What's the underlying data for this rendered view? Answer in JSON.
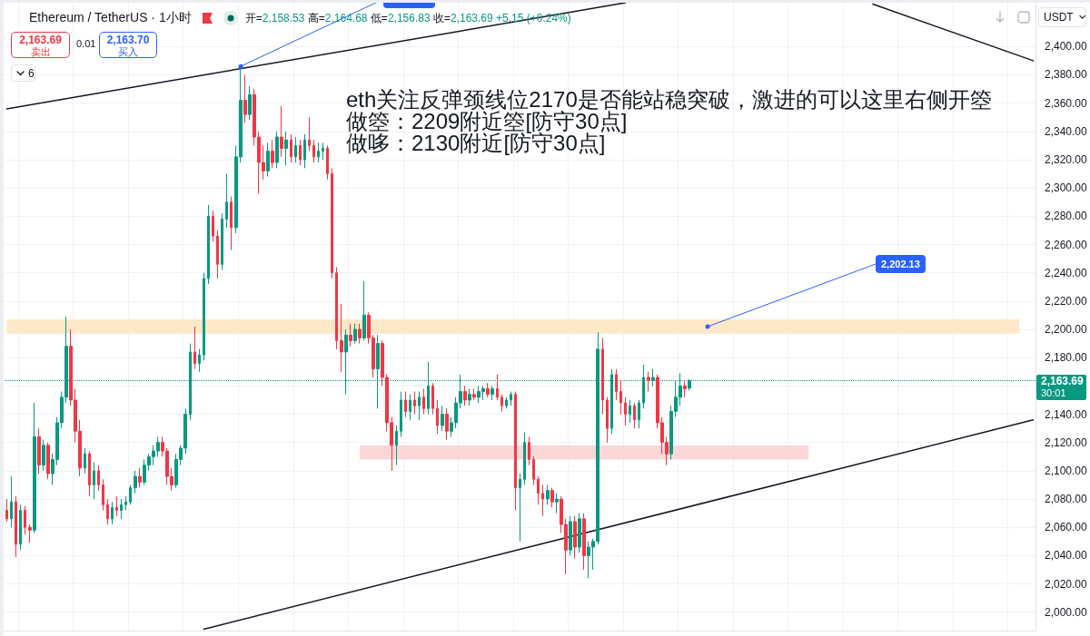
{
  "chart_data": {
    "type": "candlestick",
    "title": "Ethereum / TetherUS · 1小时",
    "subtitle": "开=2,158.53 高=2,164.68 低=2,156.83 收=2,163.69 +5.15 (+0.24%)",
    "annotations": [
      "eth关注反弹颈线位2170是否能站稳突破，激进的可以这里右侧开箜",
      "做箜：2209附近箜[防守30点]",
      "做哆：2130附近[防守30点]",
      "2,202.13",
      "30:01",
      "2,163.69",
      "卖出",
      "0.01",
      "2,163.70",
      "买入",
      "6",
      "USDT"
    ],
    "categories": [
      null,
      null,
      null,
      null,
      null,
      null,
      null,
      null,
      null,
      null,
      null,
      null,
      null,
      null,
      null,
      null,
      null,
      null,
      null,
      null,
      null,
      null,
      null,
      null,
      null,
      null,
      null,
      null,
      null,
      null,
      null,
      null,
      null,
      null,
      null,
      null,
      null,
      null,
      null,
      null,
      null,
      null,
      null,
      null,
      null,
      null,
      null,
      null,
      null,
      null,
      null,
      null,
      null,
      null,
      null,
      null,
      null,
      null,
      null,
      null,
      null,
      null,
      null,
      null,
      null,
      null,
      null,
      null,
      null,
      null,
      null,
      null,
      null,
      null,
      null,
      null,
      null,
      null,
      null,
      null,
      null,
      null,
      null,
      null,
      null,
      null,
      null,
      null,
      null,
      null,
      null,
      null,
      null,
      null,
      null,
      null,
      null,
      null,
      null,
      null,
      null,
      null,
      null,
      null,
      null,
      null,
      null,
      null,
      null,
      null,
      null,
      null,
      null,
      null,
      null,
      null,
      null,
      null,
      null,
      null,
      null,
      null,
      null,
      null,
      null,
      null,
      null,
      null,
      null,
      null,
      null,
      null,
      null,
      null,
      null,
      null,
      null,
      null,
      null,
      null,
      null,
      null,
      null,
      null,
      null,
      null,
      null,
      null,
      null,
      null,
      null,
      null,
      null,
      null,
      null,
      null,
      null,
      null,
      null,
      null,
      null,
      null,
      null,
      null,
      null,
      null,
      null,
      null,
      null,
      null,
      null,
      null,
      null,
      null,
      null,
      null,
      null,
      null,
      null,
      null,
      null,
      null,
      null,
      null,
      null,
      null,
      null,
      null,
      null,
      null,
      null,
      null,
      null,
      null,
      null,
      null,
      null,
      null,
      null,
      null,
      null,
      null,
      null,
      null,
      null,
      null,
      null,
      null,
      null,
      null,
      null,
      null,
      null,
      null,
      null,
      null,
      null,
      null,
      null,
      null,
      null,
      null,
      null,
      null,
      null
    ],
    "ohlc": [
      [
        2072,
        2080,
        2064,
        2066
      ],
      [
        2066,
        2096,
        2060,
        2078
      ],
      [
        2078,
        2082,
        2039,
        2048
      ],
      [
        2048,
        2076,
        2044,
        2072
      ],
      [
        2072,
        2075,
        2055,
        2060
      ],
      [
        2060,
        2062,
        2049,
        2058
      ],
      [
        2058,
        2148,
        2056,
        2124
      ],
      [
        2124,
        2130,
        2098,
        2104
      ],
      [
        2104,
        2122,
        2100,
        2118
      ],
      [
        2118,
        2120,
        2094,
        2098
      ],
      [
        2098,
        2112,
        2090,
        2108
      ],
      [
        2108,
        2138,
        2104,
        2134
      ],
      [
        2134,
        2156,
        2130,
        2152
      ],
      [
        2152,
        2209,
        2148,
        2188
      ],
      [
        2188,
        2200,
        2146,
        2150
      ],
      [
        2150,
        2158,
        2120,
        2128
      ],
      [
        2128,
        2136,
        2096,
        2102
      ],
      [
        2102,
        2116,
        2098,
        2112
      ],
      [
        2112,
        2114,
        2082,
        2090
      ],
      [
        2090,
        2106,
        2080,
        2100
      ],
      [
        2100,
        2104,
        2086,
        2090
      ],
      [
        2090,
        2094,
        2072,
        2076
      ],
      [
        2076,
        2080,
        2062,
        2066
      ],
      [
        2066,
        2078,
        2062,
        2074
      ],
      [
        2074,
        2082,
        2068,
        2072
      ],
      [
        2072,
        2080,
        2066,
        2076
      ],
      [
        2076,
        2082,
        2072,
        2078
      ],
      [
        2078,
        2090,
        2076,
        2088
      ],
      [
        2088,
        2100,
        2084,
        2096
      ],
      [
        2096,
        2102,
        2088,
        2092
      ],
      [
        2092,
        2108,
        2090,
        2104
      ],
      [
        2104,
        2112,
        2100,
        2110
      ],
      [
        2110,
        2118,
        2104,
        2114
      ],
      [
        2114,
        2124,
        2110,
        2120
      ],
      [
        2120,
        2124,
        2110,
        2114
      ],
      [
        2114,
        2116,
        2090,
        2096
      ],
      [
        2096,
        2102,
        2086,
        2090
      ],
      [
        2090,
        2112,
        2088,
        2108
      ],
      [
        2108,
        2118,
        2104,
        2116
      ],
      [
        2116,
        2144,
        2112,
        2140
      ],
      [
        2140,
        2190,
        2136,
        2184
      ],
      [
        2184,
        2202,
        2172,
        2176
      ],
      [
        2176,
        2186,
        2170,
        2182
      ],
      [
        2182,
        2240,
        2178,
        2236
      ],
      [
        2236,
        2288,
        2232,
        2280
      ],
      [
        2280,
        2284,
        2262,
        2266
      ],
      [
        2266,
        2270,
        2236,
        2246
      ],
      [
        2246,
        2282,
        2242,
        2278
      ],
      [
        2278,
        2310,
        2272,
        2290
      ],
      [
        2290,
        2294,
        2256,
        2272
      ],
      [
        2272,
        2330,
        2268,
        2322
      ],
      [
        2322,
        2386,
        2318,
        2362
      ],
      [
        2362,
        2380,
        2346,
        2352
      ],
      [
        2352,
        2372,
        2348,
        2366
      ],
      [
        2366,
        2370,
        2330,
        2336
      ],
      [
        2336,
        2340,
        2296,
        2318
      ],
      [
        2318,
        2330,
        2306,
        2312
      ],
      [
        2312,
        2332,
        2308,
        2326
      ],
      [
        2326,
        2334,
        2314,
        2318
      ],
      [
        2318,
        2340,
        2314,
        2336
      ],
      [
        2336,
        2358,
        2322,
        2328
      ],
      [
        2328,
        2340,
        2316,
        2334
      ],
      [
        2334,
        2338,
        2318,
        2322
      ],
      [
        2322,
        2336,
        2318,
        2330
      ],
      [
        2330,
        2334,
        2316,
        2320
      ],
      [
        2320,
        2338,
        2314,
        2334
      ],
      [
        2334,
        2350,
        2326,
        2330
      ],
      [
        2330,
        2334,
        2318,
        2322
      ],
      [
        2322,
        2332,
        2318,
        2326
      ],
      [
        2326,
        2332,
        2320,
        2328
      ],
      [
        2328,
        2330,
        2306,
        2310
      ],
      [
        2310,
        2314,
        2236,
        2240
      ],
      [
        2240,
        2244,
        2186,
        2192
      ],
      [
        2192,
        2218,
        2170,
        2184
      ],
      [
        2184,
        2200,
        2154,
        2196
      ],
      [
        2196,
        2204,
        2188,
        2192
      ],
      [
        2192,
        2204,
        2190,
        2200
      ],
      [
        2200,
        2204,
        2190,
        2194
      ],
      [
        2194,
        2234,
        2192,
        2210
      ],
      [
        2210,
        2212,
        2190,
        2194
      ],
      [
        2194,
        2196,
        2166,
        2172
      ],
      [
        2172,
        2196,
        2144,
        2190
      ],
      [
        2190,
        2192,
        2160,
        2166
      ],
      [
        2166,
        2168,
        2128,
        2134
      ],
      [
        2134,
        2138,
        2100,
        2118
      ],
      [
        2118,
        2132,
        2104,
        2128
      ],
      [
        2128,
        2156,
        2124,
        2150
      ],
      [
        2150,
        2156,
        2138,
        2142
      ],
      [
        2142,
        2154,
        2136,
        2150
      ],
      [
        2150,
        2156,
        2140,
        2146
      ],
      [
        2146,
        2156,
        2136,
        2152
      ],
      [
        2152,
        2158,
        2140,
        2144
      ],
      [
        2144,
        2177,
        2140,
        2160
      ],
      [
        2160,
        2162,
        2140,
        2144
      ],
      [
        2144,
        2150,
        2126,
        2132
      ],
      [
        2132,
        2146,
        2128,
        2140
      ],
      [
        2140,
        2144,
        2122,
        2128
      ],
      [
        2128,
        2138,
        2124,
        2134
      ],
      [
        2134,
        2152,
        2130,
        2148
      ],
      [
        2148,
        2168,
        2144,
        2156
      ],
      [
        2156,
        2160,
        2146,
        2150
      ],
      [
        2150,
        2158,
        2146,
        2154
      ],
      [
        2154,
        2158,
        2150,
        2152
      ],
      [
        2152,
        2160,
        2148,
        2156
      ],
      [
        2156,
        2160,
        2150,
        2158
      ],
      [
        2158,
        2162,
        2152,
        2154
      ],
      [
        2154,
        2160,
        2150,
        2158
      ],
      [
        2158,
        2168,
        2150,
        2152
      ],
      [
        2152,
        2154,
        2142,
        2146
      ],
      [
        2146,
        2152,
        2144,
        2150
      ],
      [
        2150,
        2156,
        2146,
        2154
      ],
      [
        2154,
        2156,
        2072,
        2088
      ],
      [
        2088,
        2098,
        2050,
        2094
      ],
      [
        2094,
        2127,
        2090,
        2120
      ],
      [
        2120,
        2124,
        2104,
        2108
      ],
      [
        2108,
        2110,
        2090,
        2094
      ],
      [
        2094,
        2096,
        2076,
        2084
      ],
      [
        2084,
        2090,
        2068,
        2080
      ],
      [
        2080,
        2090,
        2076,
        2086
      ],
      [
        2086,
        2088,
        2074,
        2078
      ],
      [
        2078,
        2084,
        2070,
        2080
      ],
      [
        2080,
        2082,
        2056,
        2062
      ],
      [
        2062,
        2066,
        2027,
        2044
      ],
      [
        2044,
        2068,
        2040,
        2064
      ],
      [
        2064,
        2068,
        2038,
        2046
      ],
      [
        2046,
        2070,
        2042,
        2066
      ],
      [
        2066,
        2070,
        2030,
        2040
      ],
      [
        2040,
        2050,
        2024,
        2046
      ],
      [
        2046,
        2052,
        2030,
        2050
      ],
      [
        2050,
        2198,
        2048,
        2186
      ],
      [
        2186,
        2194,
        2140,
        2150
      ],
      [
        2150,
        2152,
        2120,
        2130
      ],
      [
        2130,
        2172,
        2126,
        2168
      ],
      [
        2168,
        2172,
        2150,
        2156
      ],
      [
        2156,
        2164,
        2140,
        2148
      ],
      [
        2148,
        2152,
        2132,
        2140
      ],
      [
        2140,
        2150,
        2134,
        2146
      ],
      [
        2146,
        2148,
        2130,
        2136
      ],
      [
        2136,
        2150,
        2130,
        2148
      ],
      [
        2148,
        2175,
        2144,
        2166
      ],
      [
        2166,
        2170,
        2156,
        2164
      ],
      [
        2164,
        2172,
        2160,
        2166
      ],
      [
        2166,
        2168,
        2130,
        2134
      ],
      [
        2134,
        2138,
        2112,
        2120
      ],
      [
        2120,
        2124,
        2104,
        2112
      ],
      [
        2112,
        2146,
        2108,
        2142
      ],
      [
        2142,
        2164,
        2138,
        2152
      ],
      [
        2152,
        2169,
        2146,
        2160
      ],
      [
        2160,
        2164,
        2152,
        2158
      ],
      [
        2158.53,
        2164.68,
        2156.83,
        2163.69
      ],
      null,
      null,
      null,
      null,
      null,
      null,
      null,
      null,
      null,
      null,
      null,
      null,
      null,
      null,
      null,
      null,
      null,
      null,
      null,
      null,
      null,
      null,
      null,
      null,
      null,
      null,
      null,
      null,
      null,
      null,
      null,
      null,
      null,
      null,
      null,
      null,
      null,
      null,
      null,
      null,
      null,
      null,
      null,
      null,
      null,
      null,
      null,
      null,
      null,
      null,
      null,
      null,
      null,
      null,
      null,
      null,
      null,
      null,
      null,
      null,
      null,
      null,
      null,
      null,
      null,
      null,
      null,
      null,
      null,
      null,
      null,
      null,
      null,
      null,
      null
    ],
    "colors": [
      "#f23645",
      "#089981",
      "#f23645",
      "#089981",
      "#f23645",
      "#f23645",
      "#089981",
      "#f23645",
      "#089981",
      "#f23645",
      "#089981",
      "#089981",
      "#089981",
      "#089981",
      "#f23645",
      "#f23645",
      "#f23645",
      "#089981",
      "#f23645",
      "#089981",
      "#f23645",
      "#f23645",
      "#f23645",
      "#089981",
      "#f23645",
      "#089981",
      "#089981",
      "#089981",
      "#089981",
      "#f23645",
      "#089981",
      "#089981",
      "#089981",
      "#089981",
      "#f23645",
      "#f23645",
      "#f23645",
      "#089981",
      "#089981",
      "#089981",
      "#089981",
      "#f23645",
      "#089981",
      "#089981",
      "#089981",
      "#f23645",
      "#f23645",
      "#089981",
      "#089981",
      "#f23645",
      "#089981",
      "#089981",
      "#f23645",
      "#089981",
      "#f23645",
      "#f23645",
      "#f23645",
      "#089981",
      "#f23645",
      "#089981",
      "#f23645",
      "#089981",
      "#f23645",
      "#089981",
      "#f23645",
      "#089981",
      "#f23645",
      "#f23645",
      "#089981",
      "#089981",
      "#f23645",
      "#f23645",
      "#f23645",
      "#f23645",
      "#089981",
      "#f23645",
      "#089981",
      "#f23645",
      "#089981",
      "#f23645",
      "#f23645",
      "#089981",
      "#f23645",
      "#f23645",
      "#f23645",
      "#089981",
      "#089981",
      "#f23645",
      "#089981",
      "#f23645",
      "#089981",
      "#f23645",
      "#089981",
      "#f23645",
      "#f23645",
      "#089981",
      "#f23645",
      "#089981",
      "#089981",
      "#089981",
      "#f23645",
      "#089981",
      "#f23645",
      "#089981",
      "#089981",
      "#f23645",
      "#089981",
      "#f23645",
      "#f23645",
      "#089981",
      "#089981",
      "#f23645",
      "#089981",
      "#089981",
      "#f23645",
      "#f23645",
      "#f23645",
      "#f23645",
      "#089981",
      "#f23645",
      "#089981",
      "#f23645",
      "#f23645",
      "#089981",
      "#f23645",
      "#089981",
      "#f23645",
      "#089981",
      "#089981",
      "#089981",
      "#f23645",
      "#f23645",
      "#089981",
      "#f23645",
      "#f23645",
      "#f23645",
      "#089981",
      "#f23645",
      "#089981",
      "#089981",
      "#f23645",
      "#089981",
      "#f23645",
      "#f23645",
      "#f23645",
      "#089981",
      "#089981",
      "#089981",
      "#f23645",
      "#089981",
      null,
      null,
      null,
      null,
      null,
      null,
      null,
      null,
      null,
      null,
      null,
      null,
      null,
      null,
      null,
      null,
      null,
      null,
      null,
      null,
      null,
      null,
      null,
      null,
      null,
      null,
      null,
      null,
      null,
      null,
      null,
      null,
      null,
      null,
      null,
      null,
      null,
      null,
      null,
      null,
      null,
      null,
      null,
      null,
      null,
      null,
      null,
      null,
      null,
      null,
      null,
      null,
      null,
      null,
      null,
      null,
      null,
      null,
      null,
      null,
      null,
      null,
      null,
      null,
      null,
      null,
      null,
      null,
      null,
      null,
      null,
      null,
      null,
      null,
      null
    ],
    "series": [
      {
        "type": "line",
        "color": "#131722",
        "values": [
          2356,
          null,
          null,
          null,
          null,
          null,
          null,
          null,
          null,
          null,
          null,
          null,
          null,
          null,
          null,
          null,
          null,
          null,
          null,
          null,
          null,
          null,
          null,
          null,
          null,
          null,
          null,
          null,
          null,
          null,
          null,
          null,
          null,
          null,
          null,
          null,
          null,
          null,
          null,
          null,
          null,
          null,
          null,
          null,
          null,
          null,
          null,
          null,
          null,
          null,
          null,
          null,
          null,
          null,
          null,
          null,
          null,
          null,
          null,
          null,
          null,
          null,
          null,
          null,
          null,
          null,
          null,
          null,
          null,
          null,
          null,
          null,
          null,
          null,
          null,
          null,
          null,
          null,
          null,
          null,
          null,
          null,
          null,
          null,
          null,
          null,
          null,
          null,
          null,
          null,
          null,
          null,
          null,
          null,
          null,
          null,
          null,
          null,
          null,
          null,
          null,
          null,
          null,
          null,
          null,
          null,
          null,
          null,
          null,
          null,
          null,
          null,
          null,
          null,
          null,
          null,
          null,
          null,
          null,
          null,
          null,
          null,
          null,
          null,
          null,
          null,
          null,
          null,
          null,
          null,
          null,
          null,
          null,
          null,
          null,
          2431,
          null,
          null,
          null,
          null,
          null,
          null,
          null,
          null,
          null,
          null,
          null,
          null,
          null,
          null,
          null,
          null,
          null,
          null,
          null,
          null,
          null,
          null,
          null,
          null,
          null,
          null,
          null,
          null,
          null,
          null,
          null,
          null,
          null,
          null,
          null,
          null,
          null,
          null,
          null,
          null,
          null,
          null,
          null,
          null,
          null,
          null,
          null,
          null,
          null,
          null,
          null,
          null,
          null,
          null,
          null,
          null,
          null,
          null,
          null,
          null,
          null,
          null,
          null,
          null,
          null,
          null,
          null,
          null,
          null,
          null,
          null,
          null,
          null,
          null,
          null,
          null,
          null,
          null,
          null,
          null,
          null,
          null,
          null,
          null,
          null,
          null,
          null,
          null,
          null
        ]
      },
      {
        "type": "line",
        "color": "#131722",
        "values": [
          null,
          null,
          null,
          null,
          null,
          null,
          null,
          null,
          null,
          null,
          null,
          null,
          null,
          null,
          null,
          null,
          null,
          null,
          null,
          null,
          null,
          null,
          null,
          null,
          null,
          null,
          null,
          null,
          null,
          null,
          null,
          null,
          null,
          null,
          null,
          null,
          null,
          null,
          null,
          null,
          null,
          null,
          null,
          1988,
          null,
          null,
          null,
          null,
          null,
          null,
          null,
          null,
          null,
          null,
          null,
          null,
          null,
          null,
          null,
          null,
          null,
          null,
          null,
          null,
          null,
          null,
          null,
          null,
          null,
          null,
          null,
          null,
          null,
          null,
          null,
          null,
          null,
          null,
          null,
          null,
          null,
          null,
          null,
          null,
          null,
          null,
          null,
          null,
          null,
          null,
          null,
          null,
          null,
          null,
          null,
          null,
          null,
          null,
          null,
          null,
          null,
          null,
          null,
          null,
          null,
          null,
          null,
          null,
          null,
          null,
          null,
          null,
          null,
          null,
          null,
          null,
          null,
          null,
          null,
          null,
          null,
          null,
          null,
          null,
          null,
          null,
          null,
          null,
          null,
          null,
          null,
          null,
          null,
          null,
          null,
          null,
          null,
          null,
          null,
          null,
          null,
          null,
          null,
          null,
          null,
          null,
          null,
          null,
          null,
          null,
          null,
          null,
          null,
          null,
          null,
          null,
          null,
          null,
          null,
          null,
          null,
          null,
          null,
          null,
          null,
          null,
          null,
          null,
          null,
          null,
          null,
          null,
          null,
          null,
          null,
          null,
          null,
          null,
          null,
          null,
          null,
          null,
          null,
          null,
          null,
          null,
          null,
          null,
          null,
          null,
          null,
          null,
          null,
          null,
          null,
          null,
          null,
          null,
          null,
          null,
          null,
          null,
          null,
          null,
          null,
          null,
          null,
          null,
          null,
          null,
          null,
          null,
          null,
          null,
          null,
          null,
          null,
          null,
          null,
          null,
          null,
          null,
          null,
          null,
          2136
        ]
      },
      {
        "type": "line",
        "color": "#131722",
        "values": [
          null,
          null,
          null,
          null,
          null,
          null,
          null,
          null,
          null,
          null,
          null,
          null,
          null,
          null,
          null,
          null,
          null,
          null,
          null,
          null,
          null,
          null,
          null,
          null,
          null,
          null,
          null,
          null,
          null,
          null,
          null,
          null,
          null,
          null,
          null,
          null,
          null,
          null,
          null,
          null,
          null,
          null,
          null,
          null,
          null,
          null,
          null,
          null,
          null,
          null,
          null,
          null,
          null,
          null,
          null,
          null,
          null,
          null,
          null,
          null,
          null,
          null,
          null,
          null,
          null,
          null,
          null,
          null,
          null,
          null,
          null,
          null,
          null,
          null,
          null,
          null,
          null,
          null,
          null,
          null,
          null,
          null,
          null,
          null,
          null,
          null,
          null,
          null,
          null,
          null,
          null,
          null,
          null,
          null,
          null,
          null,
          null,
          null,
          null,
          null,
          null,
          null,
          null,
          null,
          null,
          null,
          null,
          null,
          null,
          null,
          null,
          null,
          null,
          null,
          null,
          null,
          null,
          null,
          null,
          null,
          null,
          null,
          null,
          null,
          null,
          null,
          null,
          null,
          null,
          null,
          null,
          null,
          null,
          null,
          null,
          null,
          null,
          null,
          null,
          null,
          null,
          null,
          null,
          null,
          null,
          null,
          null,
          null,
          null,
          null,
          null,
          null,
          null,
          null,
          null,
          null,
          null,
          null,
          null,
          null,
          null,
          null,
          null,
          null,
          null,
          null,
          null,
          null,
          null,
          null,
          null,
          null,
          null,
          null,
          null,
          null,
          null,
          null,
          null,
          null,
          null,
          null,
          null,
          null,
          null,
          null,
          null,
          null,
          null,
          2430,
          null,
          null,
          null,
          null,
          null,
          null,
          null,
          null,
          null,
          null,
          null,
          null,
          null,
          null,
          null,
          null,
          null,
          null,
          null,
          null,
          null,
          null,
          null,
          null,
          null,
          null,
          null,
          null,
          null,
          null,
          null,
          null,
          null,
          null,
          2390
        ]
      }
    ],
    "ylim": [
      1987,
      2431
    ],
    "yticks": [
      {
        "value": 2000,
        "label": "2,000.00"
      },
      {
        "value": 2020,
        "label": "2,020.00"
      },
      {
        "value": 2040,
        "label": "2,040.00"
      },
      {
        "value": 2060,
        "label": "2,060.00"
      },
      {
        "value": 2080,
        "label": "2,080.00"
      },
      {
        "value": 2100,
        "label": "2,100.00"
      },
      {
        "value": 2120,
        "label": "2,120.00"
      },
      {
        "value": 2140,
        "label": "2,140.00"
      },
      {
        "value": 2160,
        "label": null
      },
      {
        "value": 2180,
        "label": "2,180.00"
      },
      {
        "value": 2200,
        "label": "2,200.00"
      },
      {
        "value": 2220,
        "label": "2,220.00"
      },
      {
        "value": 2240,
        "label": "2,240.00"
      },
      {
        "value": 2260,
        "label": "2,260.00"
      },
      {
        "value": 2280,
        "label": "2,280.00"
      },
      {
        "value": 2300,
        "label": "2,300.00"
      },
      {
        "value": 2320,
        "label": "2,320.00"
      },
      {
        "value": 2340,
        "label": "2,340.00"
      },
      {
        "value": 2360,
        "label": "2,360.00"
      },
      {
        "value": 2380,
        "label": "2,380.00"
      },
      {
        "value": 2400,
        "label": "2,400.00"
      }
    ],
    "tick_labels": "y",
    "grid": true,
    "ref_lines": [
      {
        "axis": "y",
        "value": 2163.69,
        "label": "2,163.69",
        "color": "#089981",
        "line_style": "dotted"
      }
    ],
    "bands": [
      {
        "axis": "y",
        "from": 2197,
        "to": 2207,
        "color": "#fde8c8"
      },
      {
        "axis": "y",
        "from": 2108,
        "to": 2118,
        "color": "#fcd7da"
      }
    ]
  }
}
